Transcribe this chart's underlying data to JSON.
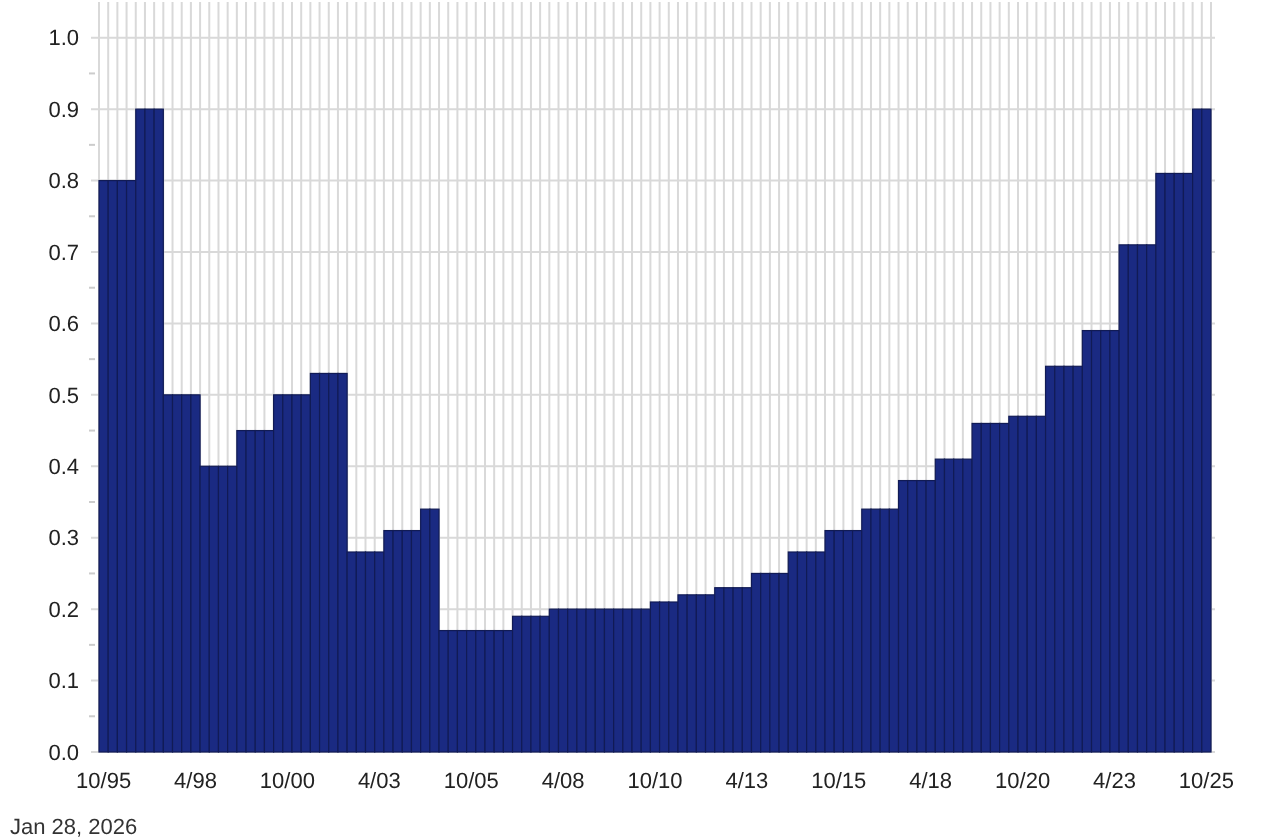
{
  "chart_data": {
    "type": "bar",
    "categories": [
      "10/95",
      null,
      null,
      null,
      null,
      null,
      null,
      null,
      null,
      null,
      "4/98",
      null,
      null,
      null,
      null,
      null,
      null,
      null,
      null,
      null,
      "10/00",
      null,
      null,
      null,
      null,
      null,
      null,
      null,
      null,
      null,
      "4/03",
      null,
      null,
      null,
      null,
      null,
      null,
      null,
      null,
      null,
      "10/05",
      null,
      null,
      null,
      null,
      null,
      null,
      null,
      null,
      null,
      "4/08",
      null,
      null,
      null,
      null,
      null,
      null,
      null,
      null,
      null,
      "10/10",
      null,
      null,
      null,
      null,
      null,
      null,
      null,
      null,
      null,
      "4/13",
      null,
      null,
      null,
      null,
      null,
      null,
      null,
      null,
      null,
      "10/15",
      null,
      null,
      null,
      null,
      null,
      null,
      null,
      null,
      null,
      "4/18",
      null,
      null,
      null,
      null,
      null,
      null,
      null,
      null,
      null,
      "10/20",
      null,
      null,
      null,
      null,
      null,
      null,
      null,
      null,
      null,
      "4/23",
      null,
      null,
      null,
      null,
      null,
      null,
      null,
      null,
      null,
      "10/25"
    ],
    "values": [
      0.8,
      0.8,
      0.8,
      0.8,
      0.9,
      0.9,
      0.9,
      0.5,
      0.5,
      0.5,
      0.5,
      0.4,
      0.4,
      0.4,
      0.4,
      0.45,
      0.45,
      0.45,
      0.45,
      0.5,
      0.5,
      0.5,
      0.5,
      0.53,
      0.53,
      0.53,
      0.53,
      0.28,
      0.28,
      0.28,
      0.28,
      0.31,
      0.31,
      0.31,
      0.31,
      0.34,
      0.34,
      0.17,
      0.17,
      0.17,
      0.17,
      0.17,
      0.17,
      0.17,
      0.17,
      0.19,
      0.19,
      0.19,
      0.19,
      0.2,
      0.2,
      0.2,
      0.2,
      0.2,
      0.2,
      0.2,
      0.2,
      0.2,
      0.2,
      0.2,
      0.21,
      0.21,
      0.21,
      0.22,
      0.22,
      0.22,
      0.22,
      0.23,
      0.23,
      0.23,
      0.23,
      0.25,
      0.25,
      0.25,
      0.25,
      0.28,
      0.28,
      0.28,
      0.28,
      0.31,
      0.31,
      0.31,
      0.31,
      0.34,
      0.34,
      0.34,
      0.34,
      0.38,
      0.38,
      0.38,
      0.38,
      0.41,
      0.41,
      0.41,
      0.41,
      0.46,
      0.46,
      0.46,
      0.46,
      0.47,
      0.47,
      0.47,
      0.47,
      0.54,
      0.54,
      0.54,
      0.54,
      0.59,
      0.59,
      0.59,
      0.59,
      0.71,
      0.71,
      0.71,
      0.71,
      0.81,
      0.81,
      0.81,
      0.81,
      0.9,
      0.9
    ],
    "color": "#1a2a82",
    "ylim": [
      0,
      1.05
    ],
    "yticks": [
      {
        "value": 0,
        "label": "0.0"
      },
      {
        "value": 0.05,
        "label": null
      },
      0.1,
      {
        "value": 0.15,
        "label": null
      },
      0.2,
      {
        "value": 0.25,
        "label": null
      },
      0.3,
      {
        "value": 0.35,
        "label": null
      },
      0.4,
      {
        "value": 0.45,
        "label": null
      },
      0.5,
      {
        "value": 0.55,
        "label": null
      },
      0.6,
      {
        "value": 0.65,
        "label": null
      },
      0.7,
      {
        "value": 0.75,
        "label": null
      },
      0.8,
      {
        "value": 0.85,
        "label": null
      },
      0.9,
      {
        "value": 0.95,
        "label": null
      },
      {
        "value": 1,
        "label": "1.0"
      }
    ],
    "grid": true,
    "annotations": [
      "Jan 28, 2026"
    ]
  }
}
